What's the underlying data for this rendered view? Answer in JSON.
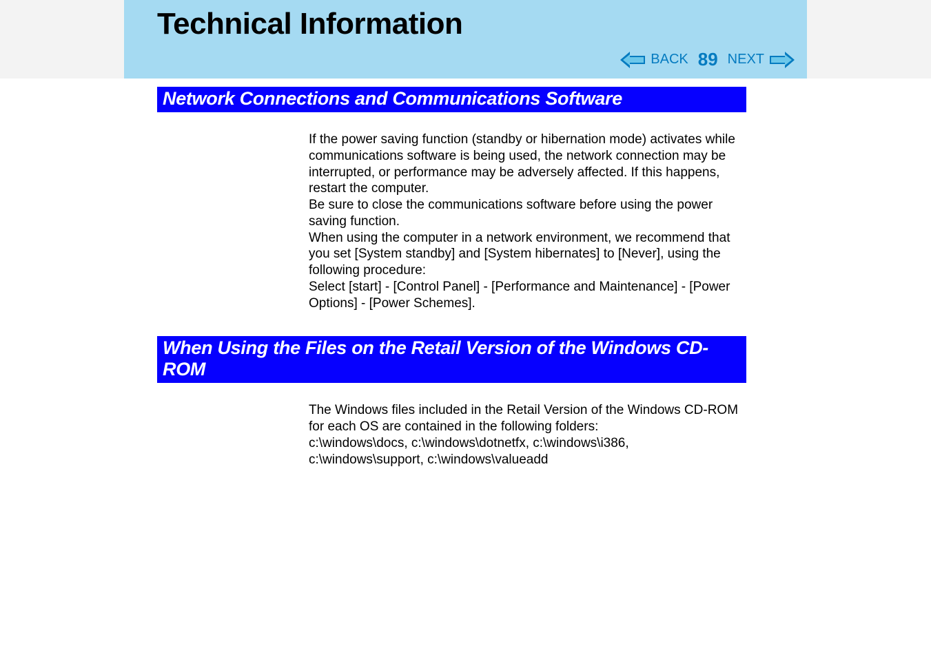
{
  "header": {
    "title": "Technical Information",
    "back_label": "BACK",
    "next_label": "NEXT",
    "page_number": "89"
  },
  "colors": {
    "header_bg": "#a5daf2",
    "side_bg": "#f3f3f3",
    "heading_bg": "#0600ff",
    "heading_text": "#ffffff",
    "nav_text": "#057bc0",
    "arrow_fill_outer": "#057bc0",
    "arrow_fill_inner": "#6cc7ea",
    "body_text": "#000000"
  },
  "sections": [
    {
      "heading": "Network Connections and Communications Software",
      "body": "If the power saving function (standby or hibernation mode) activates while communications software is being used, the network connection may be interrupted, or performance may be adversely affected.  If this happens, restart the computer.\nBe sure to close the communications software before using the power saving function.\nWhen using the computer in a network environment, we recommend that you set [System standby] and [System hibernates] to [Never], using the following procedure:\nSelect [start] - [Control Panel] - [Performance and Maintenance] - [Power Options] - [Power Schemes]."
    },
    {
      "heading": "When Using the Files on the Retail Version of the Windows CD-ROM",
      "body": "The Windows files included in the Retail Version of the Windows CD-ROM for each OS are contained in the following folders:\nc:\\windows\\docs, c:\\windows\\dotnetfx, c:\\windows\\i386, c:\\windows\\support, c:\\windows\\valueadd"
    }
  ]
}
